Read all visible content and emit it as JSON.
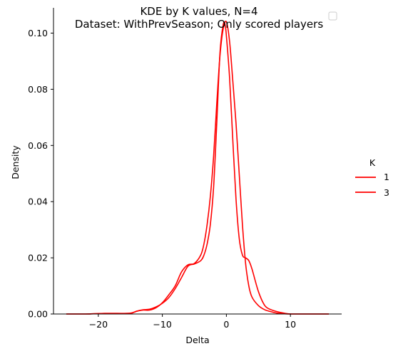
{
  "chart_data": {
    "type": "line",
    "title": "KDE by K values, N=4",
    "subtitle": "Dataset: WithPrevSeason; Only scored players",
    "xlabel": "Delta",
    "ylabel": "Density",
    "xlim": [
      -27,
      18
    ],
    "ylim": [
      0,
      0.109
    ],
    "xticks": [
      -20,
      -10,
      0,
      10
    ],
    "yticks": [
      0.0,
      0.02,
      0.04,
      0.06,
      0.08,
      0.1
    ],
    "xtick_labels": [
      "−20",
      "−10",
      "0",
      "10"
    ],
    "ytick_labels": [
      "0.00",
      "0.02",
      "0.04",
      "0.06",
      "0.08",
      "0.10"
    ],
    "grid": false,
    "legend": {
      "title": "K",
      "placement": "right",
      "entries": [
        "1",
        "3"
      ]
    },
    "series": [
      {
        "name": "1",
        "color": "#ff0000",
        "x": [
          -25,
          -22,
          -19,
          -17,
          -15,
          -14,
          -13,
          -12,
          -11,
          -10,
          -9,
          -8,
          -7,
          -6,
          -5,
          -4,
          -3.5,
          -3,
          -2.5,
          -2,
          -1.5,
          -1,
          -0.5,
          -0.2,
          0,
          0.5,
          1,
          1.5,
          2,
          2.5,
          3,
          3.5,
          4,
          5,
          6,
          7,
          8,
          9,
          10,
          12,
          14,
          16
        ],
        "values": [
          0.0,
          0.0,
          0.0002,
          0.0002,
          0.0003,
          0.001,
          0.0015,
          0.0017,
          0.0025,
          0.0038,
          0.0058,
          0.009,
          0.013,
          0.017,
          0.0178,
          0.019,
          0.021,
          0.025,
          0.032,
          0.045,
          0.068,
          0.093,
          0.103,
          0.103,
          0.099,
          0.084,
          0.062,
          0.041,
          0.027,
          0.021,
          0.02,
          0.019,
          0.016,
          0.008,
          0.003,
          0.0015,
          0.0008,
          0.0003,
          0.0,
          0.0,
          0.0,
          0.0
        ]
      },
      {
        "name": "3",
        "color": "#ff0000",
        "x": [
          -25,
          -22,
          -19,
          -17,
          -15,
          -14,
          -13,
          -12,
          -11,
          -10,
          -9,
          -8,
          -7,
          -6,
          -5,
          -4,
          -3.5,
          -3,
          -2.5,
          -2,
          -1.5,
          -1,
          -0.5,
          0,
          0.5,
          1,
          1.5,
          2,
          2.5,
          3,
          3.5,
          4,
          5,
          6,
          7,
          8,
          9,
          10,
          12,
          14,
          16
        ],
        "values": [
          0.0,
          0.0,
          0.0002,
          0.0002,
          0.0002,
          0.001,
          0.0014,
          0.0014,
          0.0022,
          0.004,
          0.0068,
          0.01,
          0.015,
          0.0175,
          0.018,
          0.021,
          0.025,
          0.032,
          0.042,
          0.056,
          0.075,
          0.092,
          0.1015,
          0.104,
          0.097,
          0.083,
          0.068,
          0.05,
          0.032,
          0.018,
          0.01,
          0.006,
          0.003,
          0.0015,
          0.0008,
          0.0003,
          0.0001,
          0.0,
          0.0,
          0.0,
          0.0
        ]
      }
    ]
  }
}
